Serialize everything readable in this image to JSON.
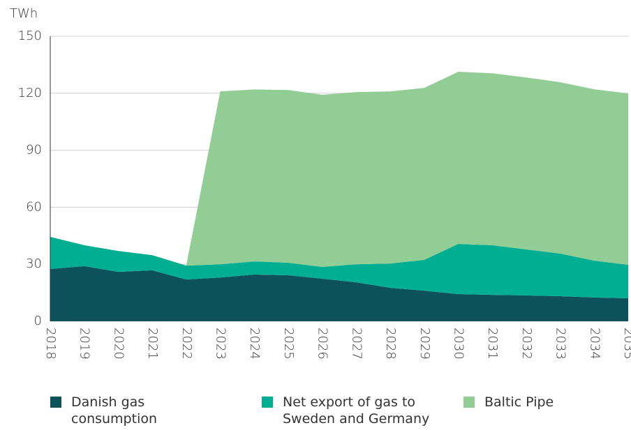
{
  "chart_data": {
    "type": "stacked_area",
    "y_axis_label": "TWh",
    "categories": [
      "2018",
      "2019",
      "2020",
      "2021",
      "2022",
      "2023",
      "2024",
      "2025",
      "2026",
      "2027",
      "2028",
      "2029",
      "2030",
      "2031",
      "2032",
      "2033",
      "2034",
      "2035"
    ],
    "series": [
      {
        "name": "Danish gas consumption",
        "color": "#0d525a",
        "values": [
          27.5,
          29,
          26,
          26.8,
          22,
          23,
          24.6,
          24.2,
          22.4,
          20.5,
          17.6,
          16.1,
          14.3,
          13.9,
          13.6,
          13.2,
          12.5,
          12.1
        ]
      },
      {
        "name": "Net export of gas to Sweden and Germany",
        "color": "#00ae92",
        "values": [
          16.9,
          11,
          11,
          8,
          7.3,
          7,
          6.9,
          6.6,
          6.2,
          9.5,
          12.8,
          16.2,
          26.4,
          26.1,
          24.2,
          22.4,
          19.4,
          17.6
        ]
      },
      {
        "name": "Baltic Pipe",
        "color": "#93cd96",
        "values": [
          0,
          0,
          0,
          0,
          0,
          91,
          90.5,
          90.9,
          90.6,
          90.6,
          90.6,
          90.5,
          90.6,
          90.5,
          90.5,
          90.2,
          90.2,
          90.2
        ]
      }
    ],
    "ylim": [
      0,
      150
    ],
    "yticks": [
      0,
      30,
      60,
      90,
      120,
      150
    ],
    "grid": true,
    "legend": "bottom"
  }
}
